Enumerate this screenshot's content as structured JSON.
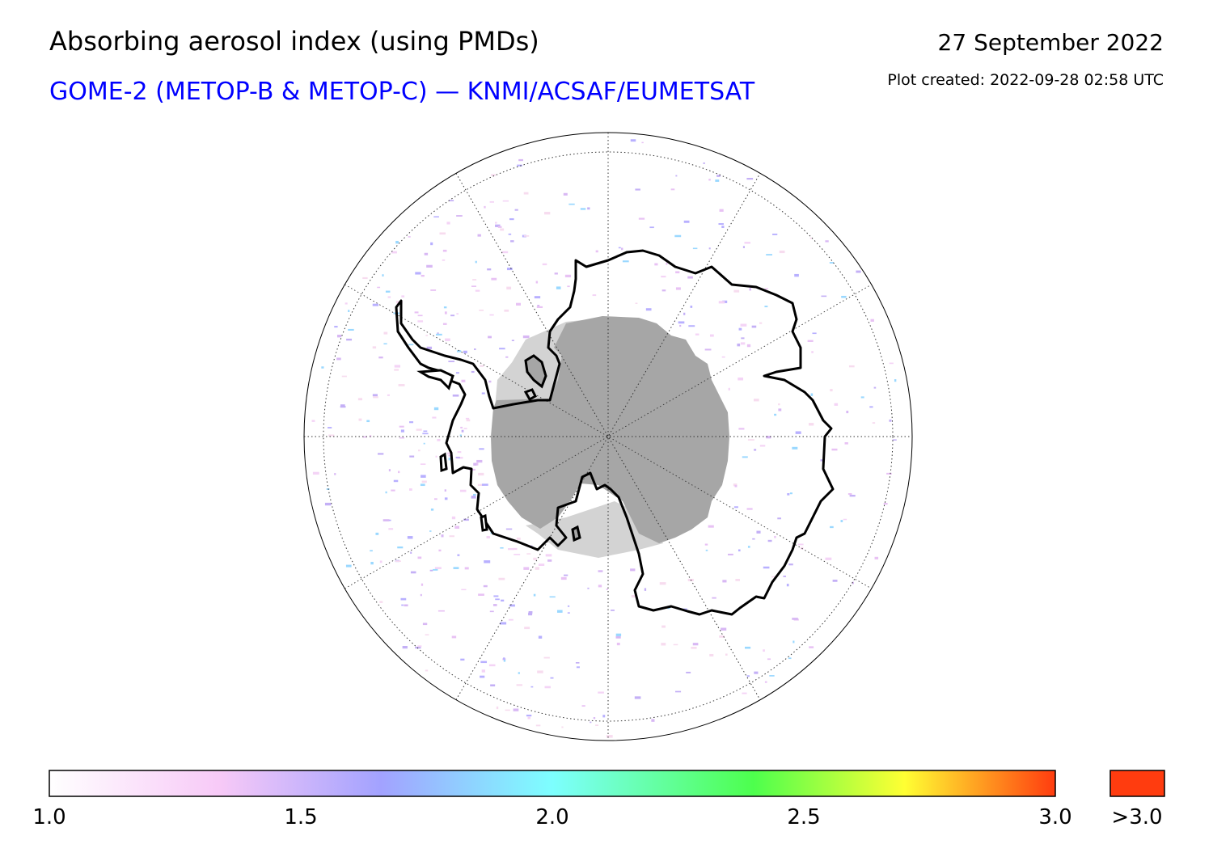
{
  "header": {
    "title": "Absorbing aerosol index (using PMDs)",
    "subtitle": "GOME-2 (METOP-B & METOP-C) — KNMI/ACSAF/EUMETSAT",
    "date": "27 September 2022",
    "plot_created": "Plot created: 2022-09-28 02:58 UTC"
  },
  "colors": {
    "subtitle": "#0000ff",
    "no_data_dark": "#a6a6a6",
    "no_data_light": "#d3d3d3",
    "overflow": "#ff3c0f"
  },
  "map": {
    "projection": "south-polar-stereographic",
    "graticule": "dotted",
    "coastline": "Antarctica"
  },
  "colorbar": {
    "min": 1.0,
    "max": 3.0,
    "tick_labels": [
      "1.0",
      "1.5",
      "2.0",
      "2.5",
      "3.0"
    ],
    "overflow_label": ">3.0",
    "stops": [
      "#ffffff",
      "#f7c9f7",
      "#a2a2ff",
      "#7dffff",
      "#4dff4d",
      "#ffff33",
      "#ff3c0f"
    ]
  }
}
